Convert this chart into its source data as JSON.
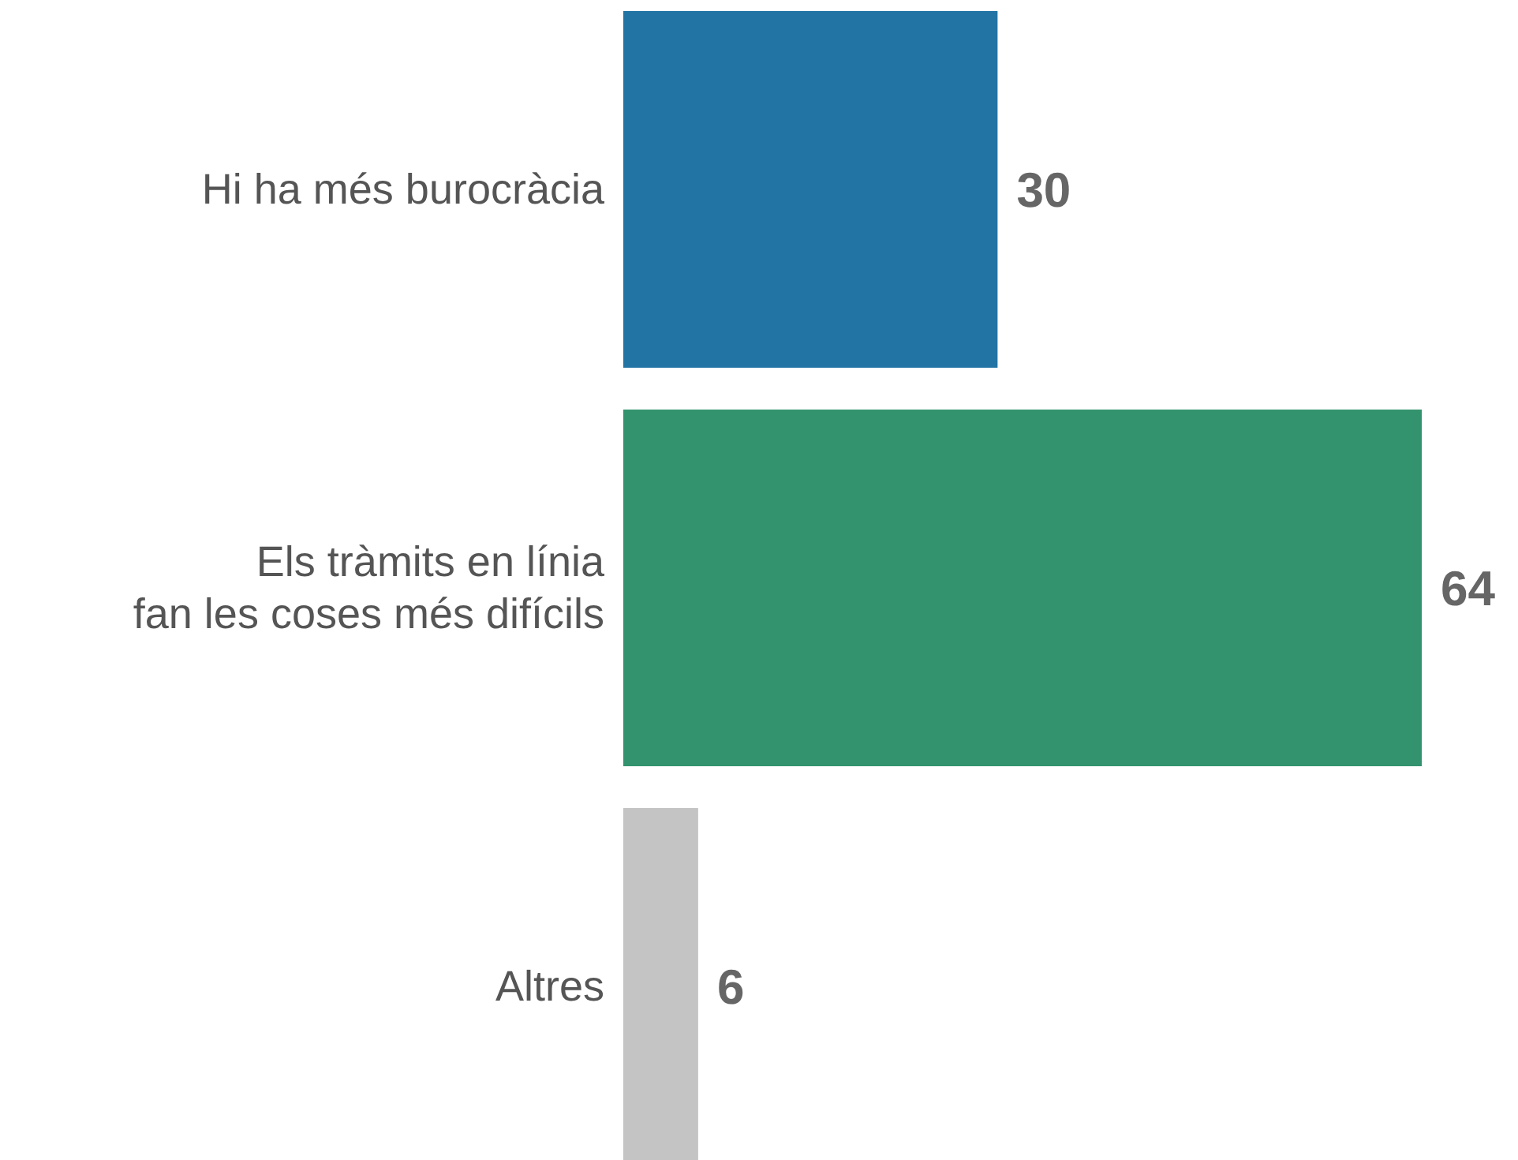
{
  "chart_data": {
    "type": "bar",
    "orientation": "horizontal",
    "categories": [
      "Hi ha més burocràcia",
      "Els tràmits en línia\nfan les coses més difícils",
      "Altres"
    ],
    "values": [
      30,
      64,
      6
    ],
    "colors": [
      "#2274a5",
      "#33936e",
      "#c4c4c4"
    ],
    "data_labels": true
  }
}
